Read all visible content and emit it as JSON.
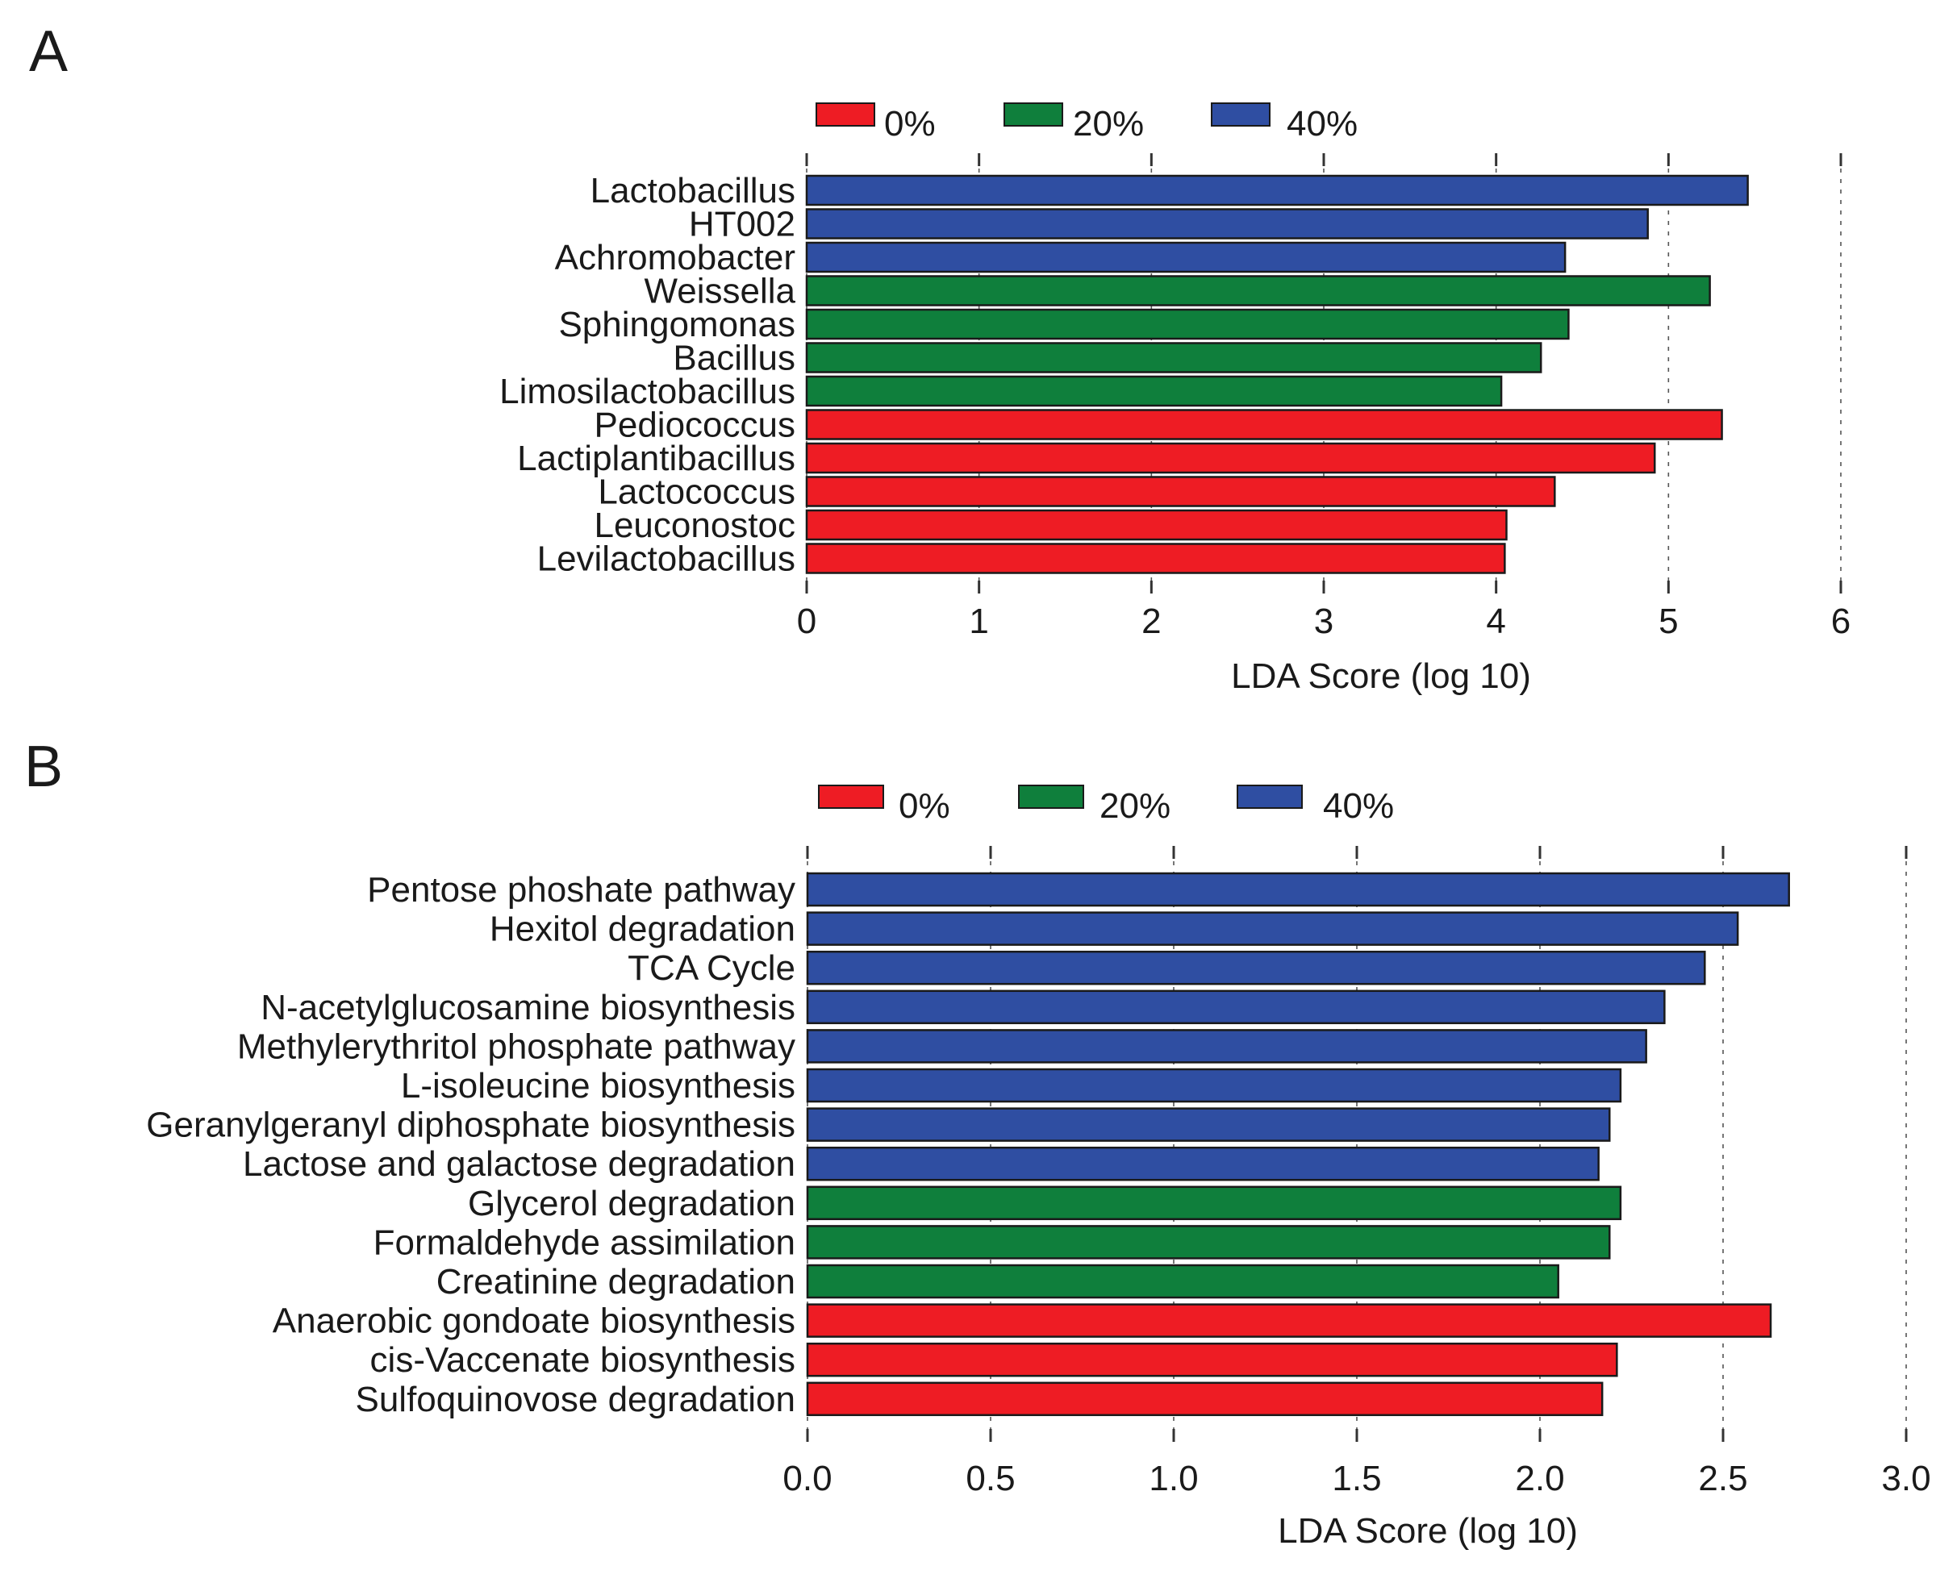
{
  "colors": {
    "0%": "#ee1c24",
    "20%": "#0f7f3c",
    "40%": "#2f4ea2",
    "outline": "#1a1a1a"
  },
  "chart_data": [
    {
      "type": "bar",
      "orientation": "horizontal",
      "panel": "A",
      "legend": [
        "0%",
        "20%",
        "40%"
      ],
      "xlabel": "LDA Score (log 10)",
      "xlim": [
        0,
        6
      ],
      "xticks": [
        "0",
        "1",
        "2",
        "3",
        "4",
        "5",
        "6"
      ],
      "categories": [
        "Lactobacillus",
        "HT002",
        "Achromobacter",
        "Weissella",
        "Sphingomonas",
        "Bacillus",
        "Limosilactobacillus",
        "Pediococcus",
        "Lactiplantibacillus",
        "Lactococcus",
        "Leuconostoc",
        "Levilactobacillus"
      ],
      "values": [
        5.46,
        4.88,
        4.4,
        5.24,
        4.42,
        4.26,
        4.03,
        5.31,
        4.92,
        4.34,
        4.06,
        4.05
      ],
      "groups": [
        "40%",
        "40%",
        "40%",
        "20%",
        "20%",
        "20%",
        "20%",
        "0%",
        "0%",
        "0%",
        "0%",
        "0%"
      ]
    },
    {
      "type": "bar",
      "orientation": "horizontal",
      "panel": "B",
      "legend": [
        "0%",
        "20%",
        "40%"
      ],
      "xlabel": "LDA Score (log 10)",
      "xlim": [
        0,
        3
      ],
      "xticks": [
        "0.0",
        "0.5",
        "1.0",
        "1.5",
        "2.0",
        "2.5",
        "3.0"
      ],
      "categories": [
        "Pentose phoshate pathway",
        "Hexitol degradation",
        "TCA Cycle",
        "N-acetylglucosamine biosynthesis",
        "Methylerythritol phosphate pathway",
        "L-isoleucine biosynthesis",
        "Geranylgeranyl diphosphate biosynthesis",
        "Lactose and galactose degradation",
        "Glycerol degradation",
        "Formaldehyde assimilation",
        "Creatinine degradation",
        "Anaerobic gondoate biosynthesis",
        "cis-Vaccenate biosynthesis",
        "Sulfoquinovose degradation"
      ],
      "values": [
        2.68,
        2.54,
        2.45,
        2.34,
        2.29,
        2.22,
        2.19,
        2.16,
        2.22,
        2.19,
        2.05,
        2.63,
        2.21,
        2.17
      ],
      "groups": [
        "40%",
        "40%",
        "40%",
        "40%",
        "40%",
        "40%",
        "40%",
        "40%",
        "20%",
        "20%",
        "20%",
        "0%",
        "0%",
        "0%"
      ]
    }
  ]
}
